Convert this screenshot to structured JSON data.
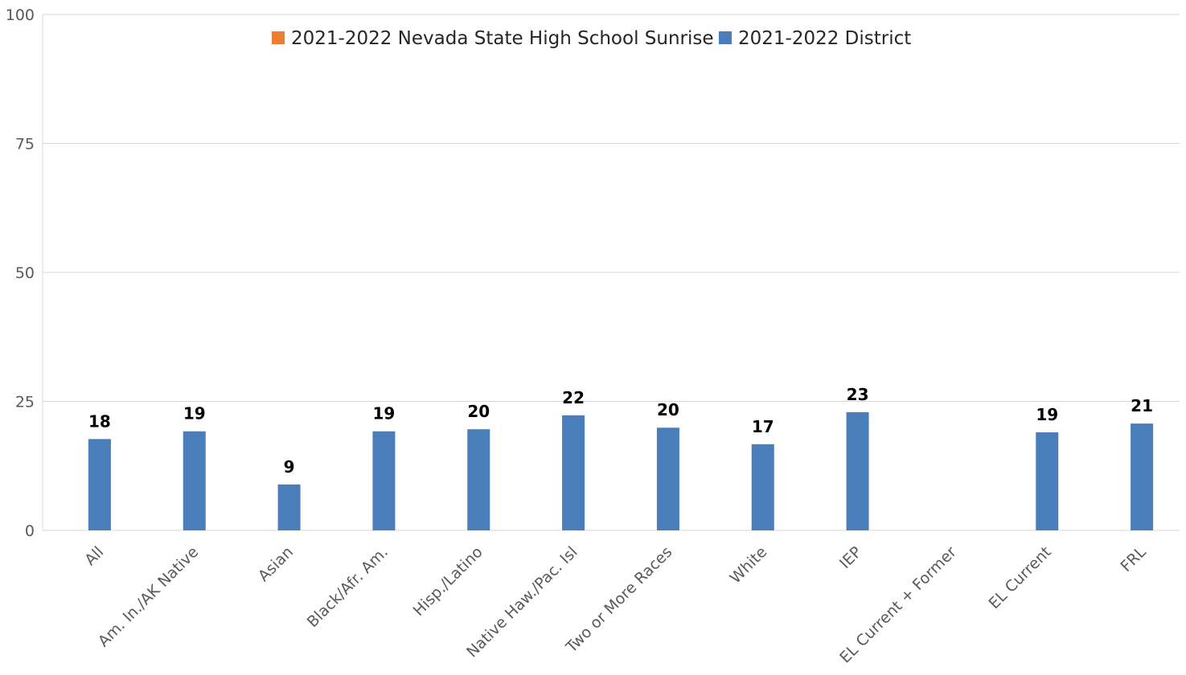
{
  "chart_data": {
    "type": "bar",
    "categories": [
      "All",
      "Am. In./AK Native",
      "Asian",
      "Black/Afr. Am.",
      "Hisp./Latino",
      "Native Haw./Pac. Isl",
      "Two or More Races",
      "White",
      "IEP",
      "EL Current + Former",
      "EL Current",
      "FRL"
    ],
    "series": [
      {
        "name": "2021-2022 Nevada State High School Sunrise",
        "color": "#ed7d31",
        "values": [
          null,
          null,
          null,
          null,
          null,
          null,
          null,
          null,
          null,
          null,
          null,
          null
        ],
        "labels": [
          "",
          "",
          "",
          "",
          "",
          "",
          "",
          "",
          "",
          "",
          "",
          ""
        ]
      },
      {
        "name": "2021-2022 District",
        "color": "#4a7ebb",
        "values": [
          17.7,
          19.2,
          8.9,
          19.2,
          19.6,
          22.3,
          19.9,
          16.7,
          22.9,
          null,
          19.0,
          20.7
        ],
        "labels": [
          "18",
          "19",
          "9",
          "19",
          "20",
          "22",
          "20",
          "17",
          "23",
          "",
          "19",
          "21"
        ]
      }
    ],
    "ylim": [
      0,
      100
    ],
    "yticks": [
      "0",
      "25",
      "50",
      "75",
      "100"
    ],
    "grid": true,
    "legend": "top-center",
    "title": "",
    "xlabel": "",
    "ylabel": ""
  }
}
